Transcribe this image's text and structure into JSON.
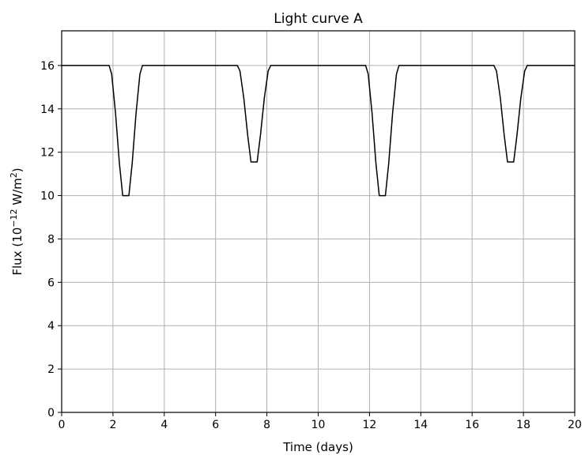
{
  "chart_data": {
    "type": "line",
    "title": "Light curve A",
    "xlabel": "Time (days)",
    "ylabel_parts": [
      "Flux (10",
      "−12",
      " W/m",
      "2",
      ")"
    ],
    "xlim": [
      0,
      20
    ],
    "ylim": [
      0,
      17.6
    ],
    "xticks": [
      0,
      2,
      4,
      6,
      8,
      10,
      12,
      14,
      16,
      18,
      20
    ],
    "yticks": [
      0,
      2,
      4,
      6,
      8,
      10,
      12,
      14,
      16
    ],
    "grid": true,
    "line_color": "#000000",
    "series": [
      {
        "x": [
          0,
          1.85,
          1.95,
          2.1,
          2.25,
          2.38,
          2.62,
          2.75,
          2.9,
          3.05,
          3.15,
          6.85,
          6.95,
          7.1,
          7.25,
          7.38,
          7.62,
          7.75,
          7.9,
          8.05,
          8.15,
          11.85,
          11.95,
          12.1,
          12.25,
          12.38,
          12.62,
          12.75,
          12.9,
          13.05,
          13.15,
          16.85,
          16.95,
          17.1,
          17.25,
          17.38,
          17.62,
          17.75,
          17.9,
          18.05,
          18.15,
          20
        ],
        "y": [
          16,
          16,
          15.6,
          13.8,
          11.5,
          10,
          10,
          11.5,
          13.8,
          15.6,
          16,
          16,
          15.75,
          14.5,
          12.8,
          11.55,
          11.55,
          12.8,
          14.5,
          15.75,
          16,
          16,
          15.6,
          13.8,
          11.5,
          10,
          10,
          11.5,
          13.8,
          15.6,
          16,
          16,
          15.75,
          14.5,
          12.8,
          11.55,
          11.55,
          12.8,
          14.5,
          15.75,
          16,
          16
        ]
      }
    ]
  }
}
